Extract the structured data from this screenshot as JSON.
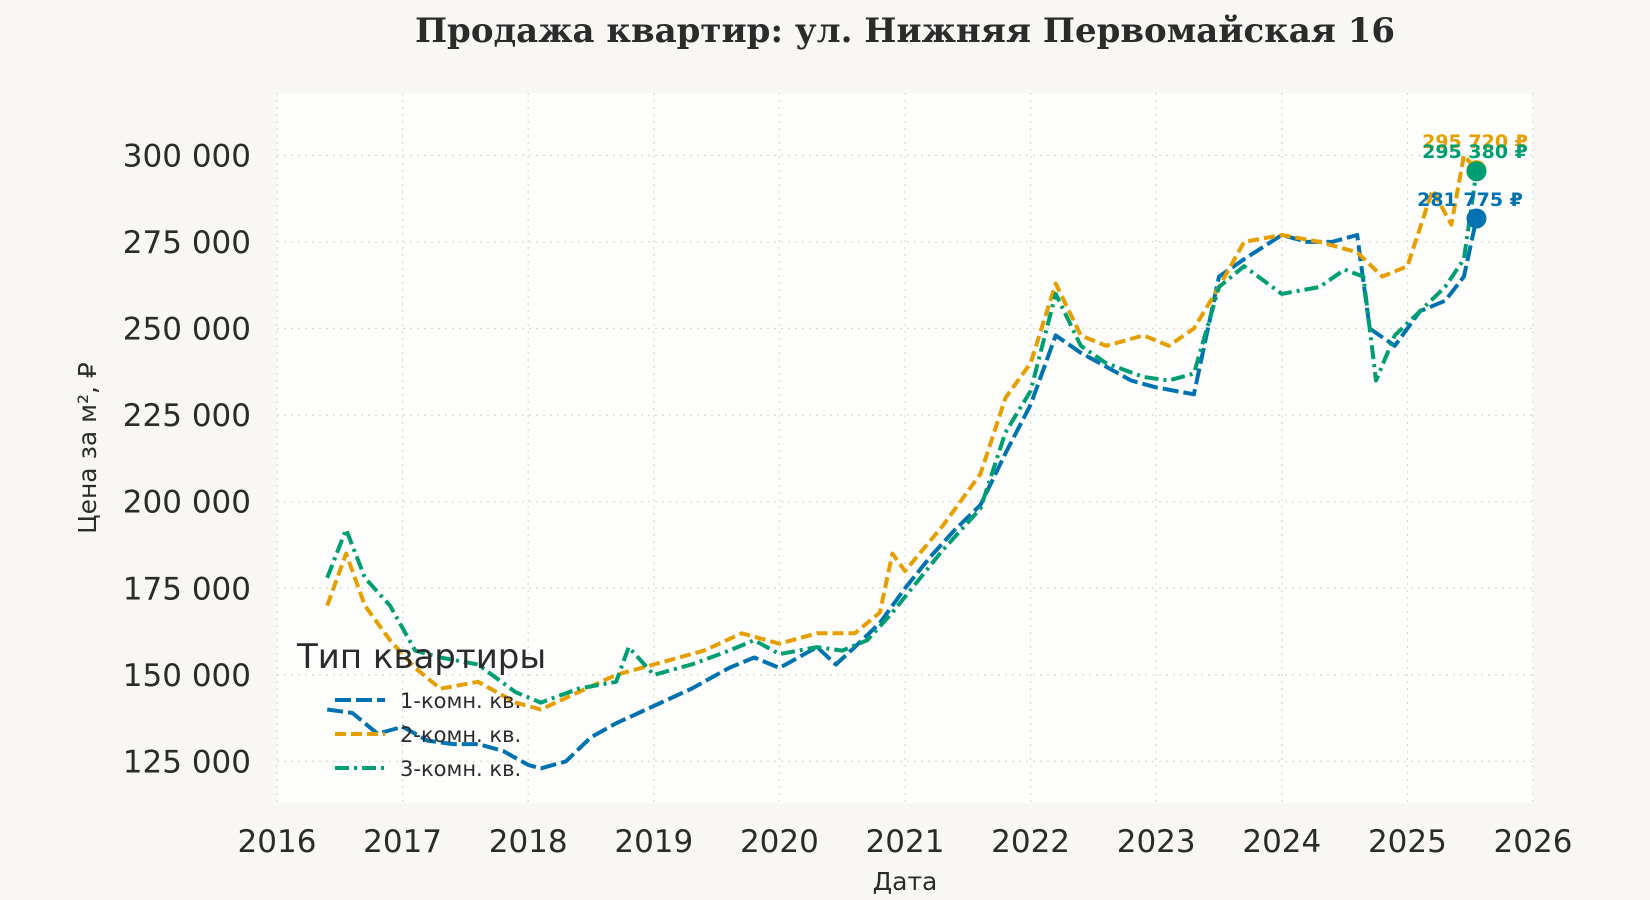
{
  "chart_data": {
    "type": "line",
    "title": "Продажа квартир: ул. Нижняя Первомайская 16",
    "xlabel": "Дата",
    "ylabel": "Цена за м², ₽",
    "xlim": [
      2016.0,
      2026.0
    ],
    "ylim": [
      113000,
      318000
    ],
    "x_ticks": [
      "2016",
      "2017",
      "2018",
      "2019",
      "2020",
      "2021",
      "2022",
      "2023",
      "2024",
      "2025",
      "2026"
    ],
    "y_ticks": [
      {
        "value": 125000,
        "label": "125 000"
      },
      {
        "value": 150000,
        "label": "150 000"
      },
      {
        "value": 175000,
        "label": "175 000"
      },
      {
        "value": 200000,
        "label": "200 000"
      },
      {
        "value": 225000,
        "label": "225 000"
      },
      {
        "value": 250000,
        "label": "250 000"
      },
      {
        "value": 275000,
        "label": "275 000"
      },
      {
        "value": 300000,
        "label": "300 000"
      }
    ],
    "grid": true,
    "legend": {
      "title": "Тип квартиры",
      "position": "lower-left"
    },
    "series": [
      {
        "name": "1-комн. кв.",
        "color": "#0072b2",
        "dash": "long-dash",
        "x": [
          2016.4,
          2016.6,
          2016.8,
          2017.0,
          2017.2,
          2017.4,
          2017.6,
          2017.8,
          2018.0,
          2018.1,
          2018.3,
          2018.5,
          2018.7,
          2019.0,
          2019.3,
          2019.6,
          2019.8,
          2020.0,
          2020.3,
          2020.45,
          2020.6,
          2020.8,
          2021.0,
          2021.2,
          2021.4,
          2021.6,
          2021.8,
          2022.0,
          2022.2,
          2022.4,
          2022.6,
          2022.8,
          2023.0,
          2023.3,
          2023.5,
          2023.7,
          2024.0,
          2024.2,
          2024.4,
          2024.6,
          2024.7,
          2024.9,
          2025.1,
          2025.3,
          2025.45,
          2025.55
        ],
        "values": [
          140000,
          139000,
          133000,
          135000,
          131000,
          130000,
          130000,
          128000,
          124000,
          123000,
          125000,
          132000,
          136000,
          141000,
          146000,
          152000,
          155000,
          152000,
          158000,
          153000,
          158000,
          165000,
          175000,
          184000,
          192000,
          199000,
          214000,
          228000,
          248000,
          243000,
          239000,
          235000,
          233000,
          231000,
          265000,
          270000,
          277000,
          275000,
          275000,
          277000,
          250000,
          245000,
          255000,
          258000,
          265000,
          281775
        ]
      },
      {
        "name": "2-комн. кв.",
        "color": "#e69f00",
        "dash": "dash",
        "x": [
          2016.4,
          2016.55,
          2016.7,
          2016.9,
          2017.1,
          2017.3,
          2017.6,
          2017.9,
          2018.1,
          2018.4,
          2018.7,
          2019.0,
          2019.4,
          2019.7,
          2020.0,
          2020.3,
          2020.6,
          2020.8,
          2020.9,
          2021.0,
          2021.3,
          2021.6,
          2021.8,
          2022.0,
          2022.2,
          2022.4,
          2022.6,
          2022.9,
          2023.1,
          2023.3,
          2023.5,
          2023.7,
          2024.0,
          2024.3,
          2024.6,
          2024.8,
          2025.0,
          2025.2,
          2025.35,
          2025.45,
          2025.55
        ],
        "values": [
          170000,
          185000,
          170000,
          160000,
          152000,
          146000,
          148000,
          142000,
          140000,
          145000,
          150000,
          153000,
          157000,
          162000,
          159000,
          162000,
          162000,
          168000,
          185000,
          180000,
          193000,
          208000,
          230000,
          240000,
          263000,
          248000,
          245000,
          248000,
          245000,
          250000,
          262000,
          275000,
          277000,
          275000,
          272000,
          265000,
          268000,
          290000,
          280000,
          300000,
          295720
        ]
      },
      {
        "name": "3-комн. кв.",
        "color": "#009e73",
        "dash": "dash-dot",
        "x": [
          2016.4,
          2016.55,
          2016.7,
          2016.9,
          2017.1,
          2017.3,
          2017.6,
          2017.9,
          2018.1,
          2018.4,
          2018.7,
          2018.8,
          2019.0,
          2019.3,
          2019.6,
          2019.8,
          2020.0,
          2020.3,
          2020.5,
          2020.7,
          2020.9,
          2021.1,
          2021.3,
          2021.6,
          2021.8,
          2022.0,
          2022.2,
          2022.4,
          2022.6,
          2022.9,
          2023.1,
          2023.3,
          2023.5,
          2023.7,
          2024.0,
          2024.3,
          2024.5,
          2024.65,
          2024.75,
          2024.9,
          2025.1,
          2025.3,
          2025.45,
          2025.55
        ],
        "values": [
          178000,
          192000,
          178000,
          170000,
          157000,
          155000,
          153000,
          145000,
          142000,
          146000,
          148000,
          158000,
          150000,
          153000,
          157000,
          160000,
          156000,
          158000,
          157000,
          160000,
          168000,
          177000,
          186000,
          198000,
          220000,
          232000,
          260000,
          245000,
          240000,
          236000,
          235000,
          237000,
          262000,
          268000,
          260000,
          262000,
          267000,
          265000,
          235000,
          248000,
          255000,
          262000,
          270000,
          295380
        ]
      }
    ],
    "end_labels": [
      {
        "series": "2-комн. кв.",
        "label": "295 720 ₽"
      },
      {
        "series": "3-комн. кв.",
        "label": "295 380 ₽"
      },
      {
        "series": "1-комн. кв.",
        "label": "281 775 ₽"
      }
    ]
  }
}
